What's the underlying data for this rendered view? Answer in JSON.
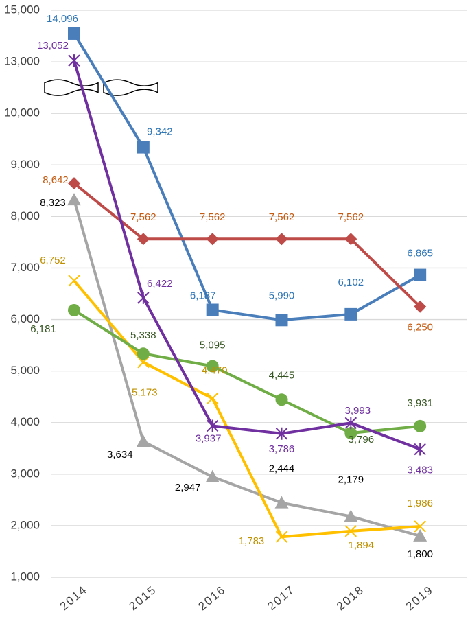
{
  "chart_data": {
    "type": "line",
    "categories": [
      "2014",
      "2015",
      "2016",
      "2017",
      "2018",
      "2019"
    ],
    "series": [
      {
        "color": "#4a7ebb",
        "label_color": "#2e75b6",
        "marker": "square",
        "values": [
          14096,
          9342,
          6187,
          5990,
          6102,
          6865
        ]
      },
      {
        "color": "#be4b48",
        "label_color": "#c55a11",
        "marker": "diamond",
        "values": [
          8642,
          7562,
          7562,
          7562,
          7562,
          6250
        ]
      },
      {
        "color": "#a5a5a5",
        "label_color": "#000000",
        "marker": "triangle",
        "values": [
          8323,
          3634,
          2947,
          2444,
          2179,
          1800
        ]
      },
      {
        "color": "#ffc000",
        "label_color": "#bf9000",
        "marker": "x",
        "values": [
          6752,
          5173,
          4470,
          1783,
          1894,
          1986
        ]
      },
      {
        "color": "#70ad47",
        "label_color": "#375623",
        "marker": "circle",
        "values": [
          6181,
          5338,
          5095,
          4445,
          3796,
          3931
        ]
      },
      {
        "color": "#7030a0",
        "label_color": "#7030a0",
        "marker": "star",
        "values": [
          13052,
          6422,
          3937,
          3786,
          3993,
          3483
        ]
      }
    ],
    "value_labels_shown": true,
    "ylim": [
      1000,
      15000
    ],
    "yticks": [
      {
        "value": 1000,
        "label": "1,000"
      },
      {
        "value": 2000,
        "label": "2,000"
      },
      {
        "value": 3000,
        "label": "3,000"
      },
      {
        "value": 4000,
        "label": "4,000"
      },
      {
        "value": 5000,
        "label": "5,000"
      },
      {
        "value": 6000,
        "label": "6,000"
      },
      {
        "value": 7000,
        "label": "7,000"
      },
      {
        "value": 8000,
        "label": "8,000"
      },
      {
        "value": 9000,
        "label": "9,000"
      },
      {
        "value": 10000,
        "label": "10,000"
      },
      {
        "value": 13000,
        "label": "13,000"
      },
      {
        "value": 15000,
        "label": "15,000"
      }
    ],
    "y_axis_break": true,
    "grid": true
  }
}
